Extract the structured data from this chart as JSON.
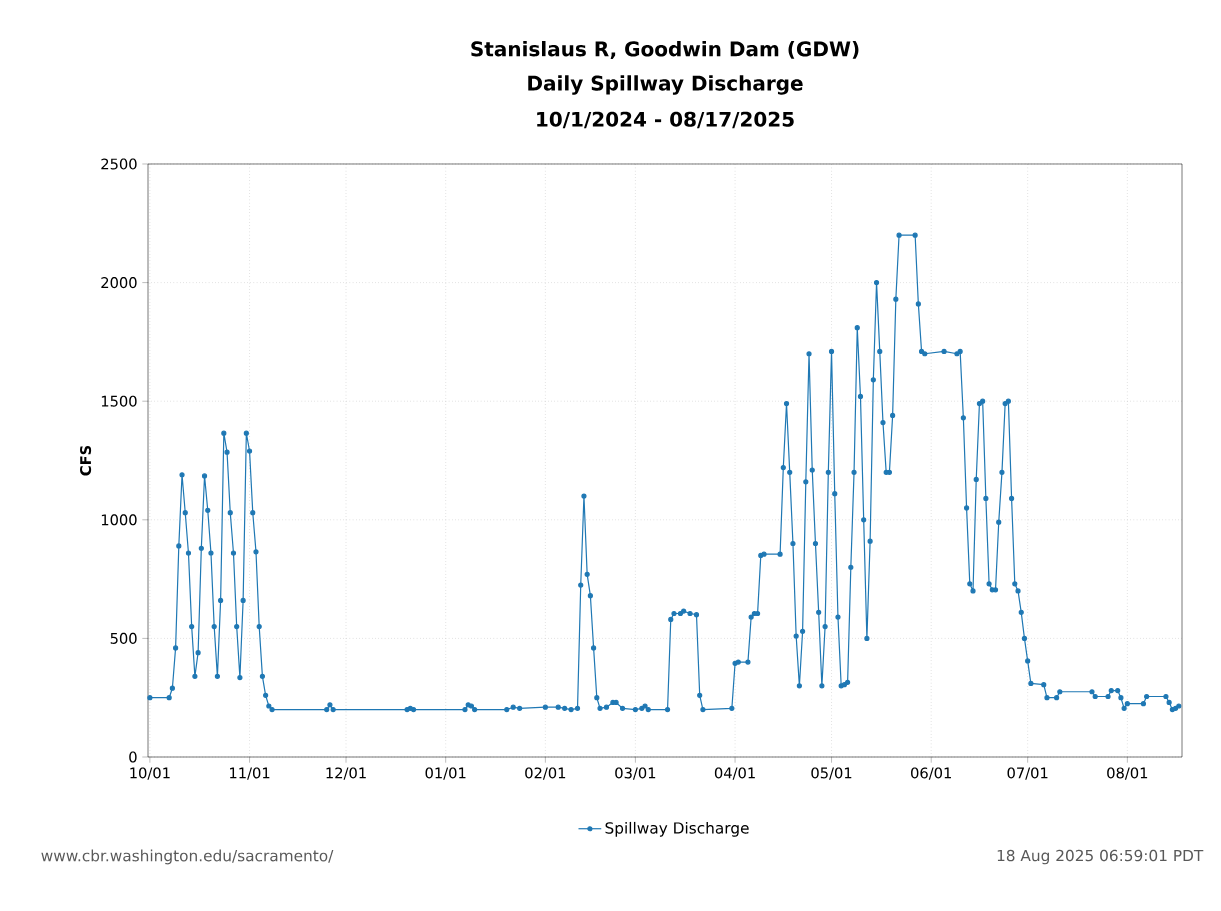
{
  "chart_data": {
    "type": "line",
    "title": "Stanislaus R, Goodwin Dam (GDW)",
    "subtitle": "Daily Spillway Discharge",
    "ylabel": "CFS",
    "annotations": [
      "10/1/2024 - 08/17/2025",
      "www.cbr.washington.edu/sacramento/",
      "18 Aug 2025 06:59:01 PDT"
    ],
    "xlim": [
      "2024-09-30T10:00",
      "2025-08-18T00:00"
    ],
    "ylim": [
      0,
      2500
    ],
    "yticks": [
      0,
      500,
      1000,
      1500,
      2000,
      2500
    ],
    "xticks": [
      {
        "value": "2024-10-01",
        "label": "10/01"
      },
      {
        "value": "2024-11-01",
        "label": "11/01"
      },
      {
        "value": "2024-12-01",
        "label": "12/01"
      },
      {
        "value": "2025-01-01",
        "label": "01/01"
      },
      {
        "value": "2025-02-01",
        "label": "02/01"
      },
      {
        "value": "2025-03-01",
        "label": "03/01"
      },
      {
        "value": "2025-04-01",
        "label": "04/01"
      },
      {
        "value": "2025-05-01",
        "label": "05/01"
      },
      {
        "value": "2025-06-01",
        "label": "06/01"
      },
      {
        "value": "2025-07-01",
        "label": "07/01"
      },
      {
        "value": "2025-08-01",
        "label": "08/01"
      }
    ],
    "grid": true,
    "legend": "bottom",
    "marker": "circle",
    "line_style": "solid",
    "series": [
      {
        "name": "Spillway Discharge",
        "color": "#1f78b4",
        "x": [
          "2024-10-01",
          "2024-10-07",
          "2024-10-08",
          "2024-10-09",
          "2024-10-10",
          "2024-10-11",
          "2024-10-12",
          "2024-10-13",
          "2024-10-14",
          "2024-10-15",
          "2024-10-16",
          "2024-10-17",
          "2024-10-18",
          "2024-10-19",
          "2024-10-20",
          "2024-10-21",
          "2024-10-22",
          "2024-10-23",
          "2024-10-24",
          "2024-10-25",
          "2024-10-26",
          "2024-10-27",
          "2024-10-28",
          "2024-10-29",
          "2024-10-30",
          "2024-10-31",
          "2024-11-01",
          "2024-11-02",
          "2024-11-03",
          "2024-11-04",
          "2024-11-05",
          "2024-11-06",
          "2024-11-07",
          "2024-11-08",
          "2024-11-25",
          "2024-11-26",
          "2024-11-27",
          "2024-12-20",
          "2024-12-21",
          "2024-12-22",
          "2025-01-07",
          "2025-01-08",
          "2025-01-09",
          "2025-01-10",
          "2025-01-20",
          "2025-01-22",
          "2025-01-24",
          "2025-02-01",
          "2025-02-05",
          "2025-02-07",
          "2025-02-09",
          "2025-02-11",
          "2025-02-12",
          "2025-02-13",
          "2025-02-14",
          "2025-02-15",
          "2025-02-16",
          "2025-02-17",
          "2025-02-18",
          "2025-02-20",
          "2025-02-22",
          "2025-02-23",
          "2025-02-25",
          "2025-03-01",
          "2025-03-03",
          "2025-03-04",
          "2025-03-05",
          "2025-03-11",
          "2025-03-12",
          "2025-03-13",
          "2025-03-15",
          "2025-03-16",
          "2025-03-18",
          "2025-03-20",
          "2025-03-21",
          "2025-03-22",
          "2025-03-31",
          "2025-04-01",
          "2025-04-02",
          "2025-04-05",
          "2025-04-06",
          "2025-04-07",
          "2025-04-08",
          "2025-04-09",
          "2025-04-10",
          "2025-04-15",
          "2025-04-16",
          "2025-04-17",
          "2025-04-18",
          "2025-04-19",
          "2025-04-20",
          "2025-04-21",
          "2025-04-22",
          "2025-04-23",
          "2025-04-24",
          "2025-04-25",
          "2025-04-26",
          "2025-04-27",
          "2025-04-28",
          "2025-04-29",
          "2025-04-30",
          "2025-05-01",
          "2025-05-02",
          "2025-05-03",
          "2025-05-04",
          "2025-05-05",
          "2025-05-06",
          "2025-05-07",
          "2025-05-08",
          "2025-05-09",
          "2025-05-10",
          "2025-05-11",
          "2025-05-12",
          "2025-05-13",
          "2025-05-14",
          "2025-05-15",
          "2025-05-16",
          "2025-05-17",
          "2025-05-18",
          "2025-05-19",
          "2025-05-20",
          "2025-05-21",
          "2025-05-22",
          "2025-05-27",
          "2025-05-28",
          "2025-05-29",
          "2025-05-30",
          "2025-06-05",
          "2025-06-09",
          "2025-06-10",
          "2025-06-11",
          "2025-06-12",
          "2025-06-13",
          "2025-06-14",
          "2025-06-15",
          "2025-06-16",
          "2025-06-17",
          "2025-06-18",
          "2025-06-19",
          "2025-06-20",
          "2025-06-21",
          "2025-06-22",
          "2025-06-23",
          "2025-06-24",
          "2025-06-25",
          "2025-06-26",
          "2025-06-27",
          "2025-06-28",
          "2025-06-29",
          "2025-06-30",
          "2025-07-01",
          "2025-07-02",
          "2025-07-06",
          "2025-07-07",
          "2025-07-10",
          "2025-07-11",
          "2025-07-21",
          "2025-07-22",
          "2025-07-26",
          "2025-07-27",
          "2025-07-29",
          "2025-07-30",
          "2025-07-31",
          "2025-08-01",
          "2025-08-06",
          "2025-08-07",
          "2025-08-13",
          "2025-08-14",
          "2025-08-15",
          "2025-08-16",
          "2025-08-17"
        ],
        "values": [
          250,
          250,
          290,
          460,
          890,
          1190,
          1030,
          860,
          550,
          340,
          440,
          880,
          1185,
          1040,
          860,
          550,
          340,
          660,
          1365,
          1285,
          1030,
          860,
          550,
          335,
          660,
          1365,
          1290,
          1030,
          865,
          550,
          340,
          260,
          215,
          200,
          200,
          220,
          200,
          200,
          205,
          200,
          200,
          220,
          215,
          200,
          200,
          210,
          205,
          210,
          210,
          205,
          200,
          205,
          725,
          1100,
          770,
          680,
          460,
          250,
          205,
          210,
          230,
          230,
          205,
          200,
          205,
          215,
          200,
          200,
          580,
          605,
          605,
          615,
          605,
          600,
          260,
          200,
          205,
          395,
          400,
          400,
          590,
          605,
          605,
          850,
          855,
          855,
          1220,
          1490,
          1200,
          900,
          510,
          300,
          530,
          1160,
          1700,
          1210,
          900,
          610,
          300,
          550,
          1200,
          1710,
          1110,
          590,
          300,
          305,
          315,
          800,
          1200,
          1810,
          1520,
          1000,
          500,
          910,
          1590,
          2000,
          1710,
          1410,
          1200,
          1200,
          1440,
          1930,
          2200,
          2200,
          1910,
          1710,
          1700,
          1710,
          1700,
          1710,
          1430,
          1050,
          730,
          700,
          1170,
          1490,
          1500,
          1090,
          730,
          705,
          705,
          990,
          1200,
          1490,
          1500,
          1090,
          730,
          700,
          610,
          500,
          405,
          310,
          305,
          250,
          250,
          275,
          275,
          255,
          255,
          280,
          280,
          250,
          205,
          225,
          225,
          255,
          255,
          230,
          200,
          205,
          215
        ]
      }
    ]
  }
}
